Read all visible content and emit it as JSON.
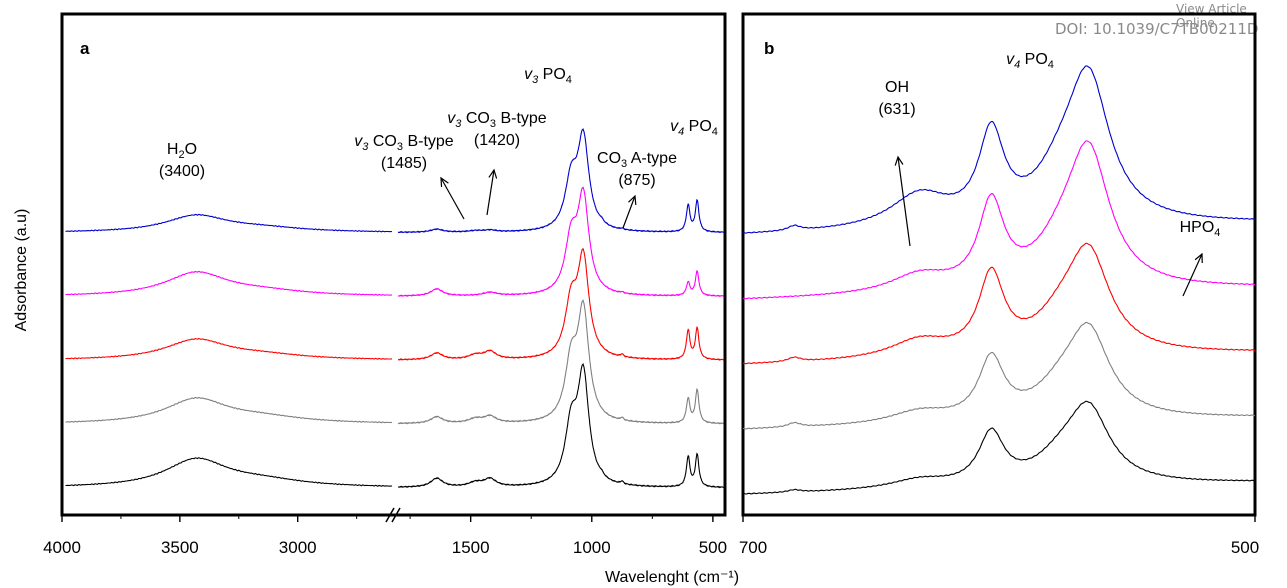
{
  "watermark": {
    "line1": "View Article Online",
    "line2": "DOI: 10.1039/C7TB00211D"
  },
  "chart_data": [
    {
      "type": "line",
      "panel_label": "a",
      "xlabel": "Wavelenght (cm⁻¹)",
      "ylabel": "Adsorbance (a.u)",
      "x_reversed": true,
      "x_break": [
        2600,
        1800
      ],
      "xlim_left_segment": [
        4000,
        2600
      ],
      "xlim_right_segment": [
        1800,
        450
      ],
      "x_tick_labels": [
        "4000",
        "3500",
        "3000",
        "1500",
        "1000",
        "500"
      ],
      "x_ticks": [
        4000,
        3500,
        3000,
        1500,
        1000,
        500
      ],
      "annotations": [
        {
          "text": "H",
          "sub": "2",
          "text2": "O",
          "line2": "(3400)"
        },
        {
          "prefix": "v",
          "prefix_sub": "3",
          "text": "CO",
          "sub": "3",
          "text2": " B-type",
          "line2": "(1485)"
        },
        {
          "prefix": "v",
          "prefix_sub": "3",
          "text": "CO",
          "sub": "3",
          "text2": " B-type",
          "line2": "(1420)"
        },
        {
          "prefix": "v",
          "prefix_sub": "3",
          "text": "PO",
          "sub": "4",
          "text2": "",
          "line2": ""
        },
        {
          "text": "CO",
          "sub": "3",
          "text2": " A-type",
          "line2": "(875)"
        },
        {
          "prefix": "v",
          "prefix_sub": "4",
          "text": "PO",
          "sub": "4",
          "text2": "",
          "line2": ""
        }
      ],
      "series": [
        {
          "color": "#0000cc",
          "offset": 4,
          "bands": [
            {
              "c": 3430,
              "w": 160,
              "h": 0.75
            },
            {
              "c": 3150,
              "w": 220,
              "h": 0.18
            },
            {
              "c": 1640,
              "w": 30,
              "h": 0.14
            },
            {
              "c": 1480,
              "w": 35,
              "h": 0.06
            },
            {
              "c": 1420,
              "w": 30,
              "h": 0.08
            },
            {
              "c": 1085,
              "w": 30,
              "h": 2.2
            },
            {
              "c": 1035,
              "w": 28,
              "h": 4.1
            },
            {
              "c": 960,
              "w": 10,
              "h": 0.1
            },
            {
              "c": 875,
              "w": 7,
              "h": 0.05
            },
            {
              "c": 602,
              "w": 9,
              "h": 1.2
            },
            {
              "c": 565,
              "w": 9,
              "h": 1.4
            }
          ]
        },
        {
          "color": "#ff00ff",
          "offset": 3,
          "bands": [
            {
              "c": 3430,
              "w": 160,
              "h": 1.05
            },
            {
              "c": 3150,
              "w": 220,
              "h": 0.2
            },
            {
              "c": 1640,
              "w": 30,
              "h": 0.32
            },
            {
              "c": 1420,
              "w": 35,
              "h": 0.15
            },
            {
              "c": 1085,
              "w": 30,
              "h": 2.4
            },
            {
              "c": 1035,
              "w": 28,
              "h": 4.3
            },
            {
              "c": 875,
              "w": 7,
              "h": 0.05
            },
            {
              "c": 602,
              "w": 9,
              "h": 0.6
            },
            {
              "c": 565,
              "w": 9,
              "h": 1.1
            }
          ]
        },
        {
          "color": "#ff0000",
          "offset": 2,
          "bands": [
            {
              "c": 3430,
              "w": 160,
              "h": 0.9
            },
            {
              "c": 3150,
              "w": 220,
              "h": 0.2
            },
            {
              "c": 1640,
              "w": 30,
              "h": 0.3
            },
            {
              "c": 1480,
              "w": 35,
              "h": 0.2
            },
            {
              "c": 1420,
              "w": 30,
              "h": 0.35
            },
            {
              "c": 1085,
              "w": 30,
              "h": 2.4
            },
            {
              "c": 1035,
              "w": 28,
              "h": 4.4
            },
            {
              "c": 875,
              "w": 7,
              "h": 0.12
            },
            {
              "c": 602,
              "w": 9,
              "h": 1.3
            },
            {
              "c": 565,
              "w": 9,
              "h": 1.4
            }
          ]
        },
        {
          "color": "#808080",
          "offset": 1,
          "bands": [
            {
              "c": 3430,
              "w": 160,
              "h": 1.1
            },
            {
              "c": 3150,
              "w": 220,
              "h": 0.25
            },
            {
              "c": 1640,
              "w": 30,
              "h": 0.3
            },
            {
              "c": 1480,
              "w": 35,
              "h": 0.2
            },
            {
              "c": 1420,
              "w": 30,
              "h": 0.3
            },
            {
              "c": 1085,
              "w": 30,
              "h": 2.6
            },
            {
              "c": 1035,
              "w": 28,
              "h": 4.9
            },
            {
              "c": 875,
              "w": 7,
              "h": 0.12
            },
            {
              "c": 602,
              "w": 9,
              "h": 1.1
            },
            {
              "c": 565,
              "w": 9,
              "h": 1.5
            }
          ]
        },
        {
          "color": "#000000",
          "offset": 0,
          "bands": [
            {
              "c": 3430,
              "w": 160,
              "h": 1.25
            },
            {
              "c": 3150,
              "w": 220,
              "h": 0.28
            },
            {
              "c": 1640,
              "w": 30,
              "h": 0.4
            },
            {
              "c": 1480,
              "w": 35,
              "h": 0.2
            },
            {
              "c": 1420,
              "w": 30,
              "h": 0.35
            },
            {
              "c": 1085,
              "w": 30,
              "h": 2.6
            },
            {
              "c": 1035,
              "w": 28,
              "h": 4.9
            },
            {
              "c": 960,
              "w": 10,
              "h": 0.1
            },
            {
              "c": 875,
              "w": 7,
              "h": 0.12
            },
            {
              "c": 602,
              "w": 9,
              "h": 1.35
            },
            {
              "c": 565,
              "w": 9,
              "h": 1.45
            }
          ]
        }
      ]
    },
    {
      "type": "line",
      "panel_label": "b",
      "x_reversed": true,
      "xlim": [
        700,
        500
      ],
      "x_tick_labels": [
        "700",
        "500"
      ],
      "x_ticks": [
        700,
        500
      ],
      "annotations": [
        {
          "text": "OH",
          "sub": "",
          "text2": "",
          "line2": "(631)"
        },
        {
          "prefix": "v",
          "prefix_sub": "4",
          "text": "PO",
          "sub": "4",
          "text2": "",
          "line2": ""
        },
        {
          "text": "HPO",
          "sub": "4",
          "text2": "",
          "line2": ""
        }
      ],
      "series": [
        {
          "color": "#0000cc",
          "offset": 4,
          "bands": [
            {
              "c": 631,
              "w": 14,
              "h": 0.55
            },
            {
              "c": 603,
              "w": 6,
              "h": 1.45
            },
            {
              "c": 565,
              "w": 10,
              "h": 2.3
            },
            {
              "c": 576,
              "w": 12,
              "h": 0.6
            },
            {
              "c": 680,
              "w": 3,
              "h": 0.08
            }
          ]
        },
        {
          "color": "#ff00ff",
          "offset": 3,
          "bands": [
            {
              "c": 631,
              "w": 14,
              "h": 0.3
            },
            {
              "c": 603,
              "w": 6,
              "h": 1.4
            },
            {
              "c": 565,
              "w": 10,
              "h": 2.2
            },
            {
              "c": 576,
              "w": 12,
              "h": 0.5
            }
          ]
        },
        {
          "color": "#ff0000",
          "offset": 2,
          "bands": [
            {
              "c": 631,
              "w": 14,
              "h": 0.3
            },
            {
              "c": 603,
              "w": 6,
              "h": 1.3
            },
            {
              "c": 565,
              "w": 10,
              "h": 1.6
            },
            {
              "c": 576,
              "w": 12,
              "h": 0.45
            },
            {
              "c": 680,
              "w": 3,
              "h": 0.07
            }
          ]
        },
        {
          "color": "#808080",
          "offset": 1,
          "bands": [
            {
              "c": 631,
              "w": 14,
              "h": 0.2
            },
            {
              "c": 603,
              "w": 6,
              "h": 1.0
            },
            {
              "c": 565,
              "w": 10,
              "h": 1.4
            },
            {
              "c": 576,
              "w": 12,
              "h": 0.4
            },
            {
              "c": 680,
              "w": 3,
              "h": 0.07
            }
          ]
        },
        {
          "color": "#000000",
          "offset": 0,
          "bands": [
            {
              "c": 631,
              "w": 14,
              "h": 0.15
            },
            {
              "c": 603,
              "w": 6,
              "h": 0.85
            },
            {
              "c": 565,
              "w": 10,
              "h": 1.2
            },
            {
              "c": 576,
              "w": 12,
              "h": 0.35
            },
            {
              "c": 680,
              "w": 3,
              "h": 0.04
            }
          ]
        }
      ]
    }
  ]
}
